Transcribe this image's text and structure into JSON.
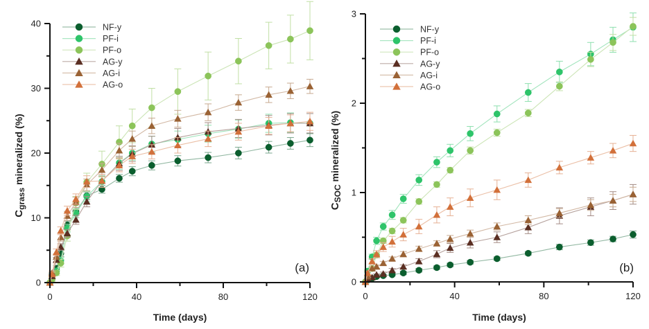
{
  "chart_data": [
    {
      "type": "line",
      "panel_label": "(a)",
      "title": "",
      "xlabel": "Time (days)",
      "ylabel_main": "C",
      "ylabel_sub": "grass",
      "ylabel_rest": " mineralized (%)",
      "xlim": [
        0,
        120
      ],
      "ylim": [
        0,
        40
      ],
      "xticks": [
        0,
        40,
        80,
        120
      ],
      "xticks_minor": [
        20,
        60,
        100
      ],
      "yticks": [
        0,
        10,
        20,
        30,
        40
      ],
      "yticks_minor": [
        5,
        15,
        25,
        35
      ],
      "grid": false,
      "legend_position": "top-left",
      "x": [
        0,
        1,
        3,
        5,
        8,
        12,
        17,
        24,
        32,
        38,
        47,
        59,
        73,
        87,
        101,
        111,
        120
      ],
      "series": [
        {
          "name": "NF-y",
          "marker": "circle",
          "color": "#0b5e2e",
          "values": [
            0,
            1.2,
            2.2,
            4.5,
            8.9,
            11.0,
            13.4,
            14.4,
            16.1,
            17.2,
            18.1,
            18.8,
            19.3,
            20.0,
            20.9,
            21.5,
            22.0
          ],
          "errors": [
            0,
            0.3,
            0.4,
            0.5,
            0.6,
            0.6,
            0.6,
            0.6,
            0.6,
            0.7,
            0.7,
            0.8,
            0.8,
            0.9,
            0.9,
            0.9,
            1.0
          ]
        },
        {
          "name": "PF-i",
          "marker": "circle",
          "color": "#2ec46a",
          "values": [
            0,
            0.8,
            1.8,
            3.4,
            8.4,
            10.7,
            13.3,
            15.6,
            18.5,
            20.0,
            21.4,
            22.1,
            23.0,
            23.7,
            24.6,
            24.7,
            24.6
          ],
          "errors": [
            0,
            0.3,
            0.4,
            0.5,
            0.6,
            0.7,
            0.8,
            0.9,
            1.0,
            1.1,
            1.2,
            1.3,
            1.3,
            1.4,
            1.4,
            1.5,
            1.5
          ]
        },
        {
          "name": "PF-o",
          "marker": "circle",
          "color": "#8cc45a",
          "values": [
            0,
            0.5,
            1.5,
            3.0,
            7.2,
            12.3,
            15.5,
            18.3,
            21.7,
            24.2,
            27.0,
            29.5,
            31.9,
            34.2,
            36.6,
            37.6,
            38.9
          ],
          "errors": [
            0,
            0.3,
            0.4,
            0.6,
            0.8,
            1.0,
            1.4,
            2.0,
            2.5,
            2.6,
            3.0,
            3.5,
            3.7,
            3.5,
            3.6,
            3.7,
            4.5
          ]
        },
        {
          "name": "AG-y",
          "marker": "triangle",
          "color": "#5a2e22",
          "values": [
            0,
            1.0,
            3.5,
            5.5,
            7.6,
            9.7,
            12.5,
            15.7,
            18.4,
            19.9,
            21.3,
            22.4,
            23.3,
            23.8,
            24.3,
            24.6,
            24.6
          ],
          "errors": [
            0,
            0.3,
            0.4,
            0.5,
            0.6,
            0.7,
            0.8,
            1.0,
            1.1,
            1.2,
            1.3,
            1.4,
            1.4,
            1.4,
            1.5,
            1.5,
            1.5
          ]
        },
        {
          "name": "AG-i",
          "marker": "triangle",
          "color": "#9a6234",
          "values": [
            0,
            1.5,
            4.0,
            7.0,
            10.3,
            12.4,
            15.1,
            17.4,
            20.4,
            22.2,
            24.2,
            25.3,
            26.3,
            27.8,
            29.0,
            29.6,
            30.3
          ],
          "errors": [
            0,
            0.3,
            0.4,
            0.6,
            0.7,
            0.8,
            0.9,
            1.0,
            1.1,
            1.2,
            1.2,
            1.3,
            1.3,
            1.2,
            1.2,
            1.2,
            1.1
          ]
        },
        {
          "name": "AG-o",
          "marker": "triangle",
          "color": "#d2703a",
          "values": [
            0,
            1.3,
            4.7,
            8.0,
            11.1,
            12.9,
            15.6,
            15.7,
            18.1,
            19.5,
            20.2,
            21.2,
            22.2,
            23.3,
            24.2,
            24.6,
            24.9
          ],
          "errors": [
            0,
            0.3,
            0.5,
            0.6,
            0.7,
            0.8,
            0.9,
            1.0,
            1.0,
            1.1,
            1.1,
            1.2,
            1.2,
            1.3,
            1.3,
            1.3,
            1.4
          ]
        }
      ]
    },
    {
      "type": "line",
      "panel_label": "(b)",
      "title": "",
      "xlabel": "Time (days)",
      "ylabel_main": "C",
      "ylabel_sub": "SOC",
      "ylabel_rest": " mineralized (%)",
      "xlim": [
        0,
        120
      ],
      "ylim": [
        0,
        3
      ],
      "xticks": [
        0,
        40,
        80,
        120
      ],
      "xticks_minor": [
        20,
        60,
        100
      ],
      "yticks": [
        0,
        1,
        2,
        3
      ],
      "yticks_minor": [
        0.5,
        1.5,
        2.5
      ],
      "grid": false,
      "legend_position": "top-left",
      "x": [
        0,
        1,
        3,
        5,
        8,
        12,
        17,
        24,
        32,
        38,
        47,
        59,
        73,
        87,
        101,
        111,
        120
      ],
      "series": [
        {
          "name": "NF-y",
          "marker": "circle",
          "color": "#0b5e2e",
          "values": [
            0,
            0.02,
            0.04,
            0.06,
            0.07,
            0.08,
            0.1,
            0.13,
            0.16,
            0.19,
            0.22,
            0.26,
            0.32,
            0.39,
            0.44,
            0.48,
            0.53
          ],
          "errors": [
            0,
            0.01,
            0.01,
            0.01,
            0.01,
            0.01,
            0.02,
            0.02,
            0.02,
            0.02,
            0.02,
            0.02,
            0.02,
            0.03,
            0.03,
            0.03,
            0.04
          ]
        },
        {
          "name": "PF-i",
          "marker": "circle",
          "color": "#2ec46a",
          "values": [
            0,
            0.12,
            0.28,
            0.46,
            0.62,
            0.75,
            0.93,
            1.14,
            1.34,
            1.47,
            1.66,
            1.88,
            2.12,
            2.35,
            2.55,
            2.71,
            2.85
          ],
          "errors": [
            0,
            0.02,
            0.03,
            0.04,
            0.04,
            0.05,
            0.05,
            0.06,
            0.06,
            0.07,
            0.08,
            0.09,
            0.1,
            0.12,
            0.13,
            0.14,
            0.16
          ]
        },
        {
          "name": "PF-o",
          "marker": "circle",
          "color": "#8cc45a",
          "values": [
            0,
            0.05,
            0.15,
            0.3,
            0.46,
            0.57,
            0.69,
            0.9,
            1.09,
            1.25,
            1.47,
            1.67,
            1.89,
            2.19,
            2.49,
            2.68,
            2.86
          ],
          "errors": [
            0,
            0.01,
            0.02,
            0.03,
            0.03,
            0.03,
            0.03,
            0.03,
            0.03,
            0.03,
            0.04,
            0.04,
            0.04,
            0.05,
            0.08,
            0.09,
            0.1
          ]
        },
        {
          "name": "AG-y",
          "marker": "triangle",
          "color": "#5a2e22",
          "values": [
            0,
            0.03,
            0.05,
            0.08,
            0.09,
            0.13,
            0.17,
            0.23,
            0.31,
            0.38,
            0.44,
            0.5,
            0.61,
            0.74,
            0.84,
            0.91,
            0.98
          ],
          "errors": [
            0,
            0.01,
            0.01,
            0.01,
            0.02,
            0.02,
            0.02,
            0.03,
            0.04,
            0.05,
            0.06,
            0.06,
            0.07,
            0.09,
            0.1,
            0.1,
            0.11
          ]
        },
        {
          "name": "AG-i",
          "marker": "triangle",
          "color": "#9a6234",
          "values": [
            0,
            0.06,
            0.15,
            0.17,
            0.21,
            0.26,
            0.31,
            0.37,
            0.43,
            0.48,
            0.54,
            0.62,
            0.69,
            0.77,
            0.86,
            0.91,
            0.98
          ],
          "errors": [
            0,
            0.01,
            0.02,
            0.02,
            0.02,
            0.02,
            0.03,
            0.03,
            0.03,
            0.04,
            0.04,
            0.04,
            0.05,
            0.05,
            0.06,
            0.07,
            0.08
          ]
        },
        {
          "name": "AG-o",
          "marker": "triangle",
          "color": "#d2703a",
          "values": [
            0,
            0.1,
            0.23,
            0.31,
            0.39,
            0.45,
            0.53,
            0.62,
            0.75,
            0.84,
            0.94,
            1.03,
            1.14,
            1.28,
            1.39,
            1.47,
            1.55
          ],
          "errors": [
            0,
            0.02,
            0.03,
            0.04,
            0.05,
            0.06,
            0.07,
            0.08,
            0.09,
            0.1,
            0.1,
            0.11,
            0.08,
            0.07,
            0.07,
            0.08,
            0.09
          ]
        }
      ]
    }
  ]
}
